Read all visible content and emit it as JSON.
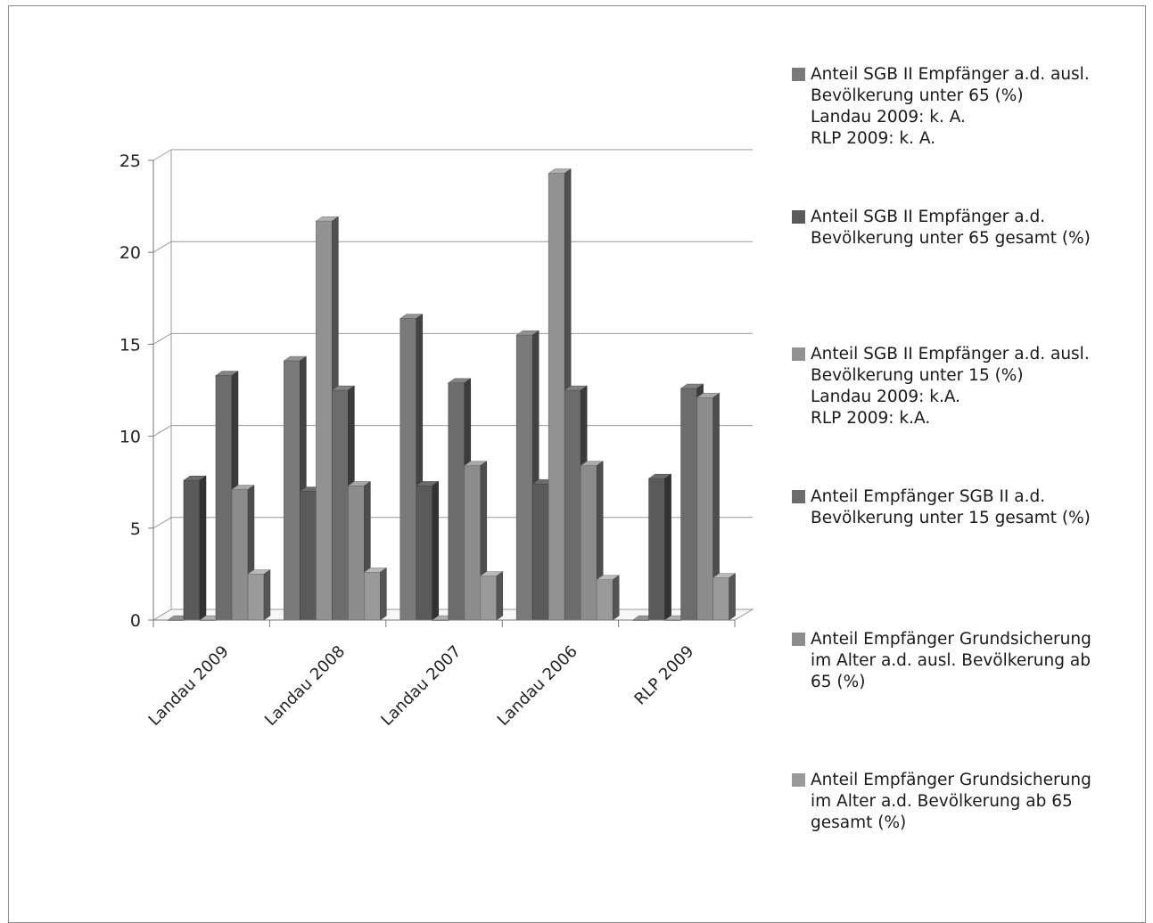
{
  "chart_data": {
    "type": "bar",
    "categories": [
      "Landau 2009",
      "Landau 2008",
      "Landau 2007",
      "Landau 2006",
      "RLP 2009"
    ],
    "ylim": [
      0,
      25
    ],
    "yticks": [
      "0",
      "5",
      "10",
      "15",
      "20",
      "25"
    ],
    "grid": true,
    "legend_position": "right",
    "series": [
      {
        "name": "Anteil SGB II Empfänger a.d. ausl.\nBevölkerung  unter 65 (%)\nLandau 2009: k. A.\nRLP 2009: k. A.",
        "color": "#7a7a7a",
        "values": [
          0,
          14.1,
          16.4,
          15.5,
          0
        ]
      },
      {
        "name": "Anteil SGB II Empfänger a.d.\nBevölkerung unter 65 gesamt (%)",
        "color": "#5a5a5a",
        "values": [
          7.6,
          7.0,
          7.3,
          7.4,
          7.7
        ]
      },
      {
        "name": "Anteil SGB II Empfänger a.d. ausl.\nBevölkerung unter 15 (%)\nLandau 2009: k.A.\nRLP 2009: k.A.",
        "color": "#929292",
        "values": [
          0,
          21.7,
          0,
          24.3,
          0
        ]
      },
      {
        "name": "Anteil Empfänger SGB II a.d.\nBevölkerung unter 15 gesamt (%)",
        "color": "#6c6c6c",
        "values": [
          13.3,
          12.5,
          12.9,
          12.5,
          12.6
        ]
      },
      {
        "name": "Anteil Empfänger Grundsicherung\nim Alter a.d. ausl. Bevölkerung ab\n65 (%)",
        "color": "#8c8c8c",
        "values": [
          7.1,
          7.3,
          8.4,
          8.4,
          12.1
        ]
      },
      {
        "name": "Anteil Empfänger Grundsicherung\nim Alter a.d. Bevölkerung ab 65\ngesamt (%)",
        "color": "#9a9a9a",
        "values": [
          2.5,
          2.6,
          2.4,
          2.2,
          2.3
        ]
      }
    ]
  }
}
